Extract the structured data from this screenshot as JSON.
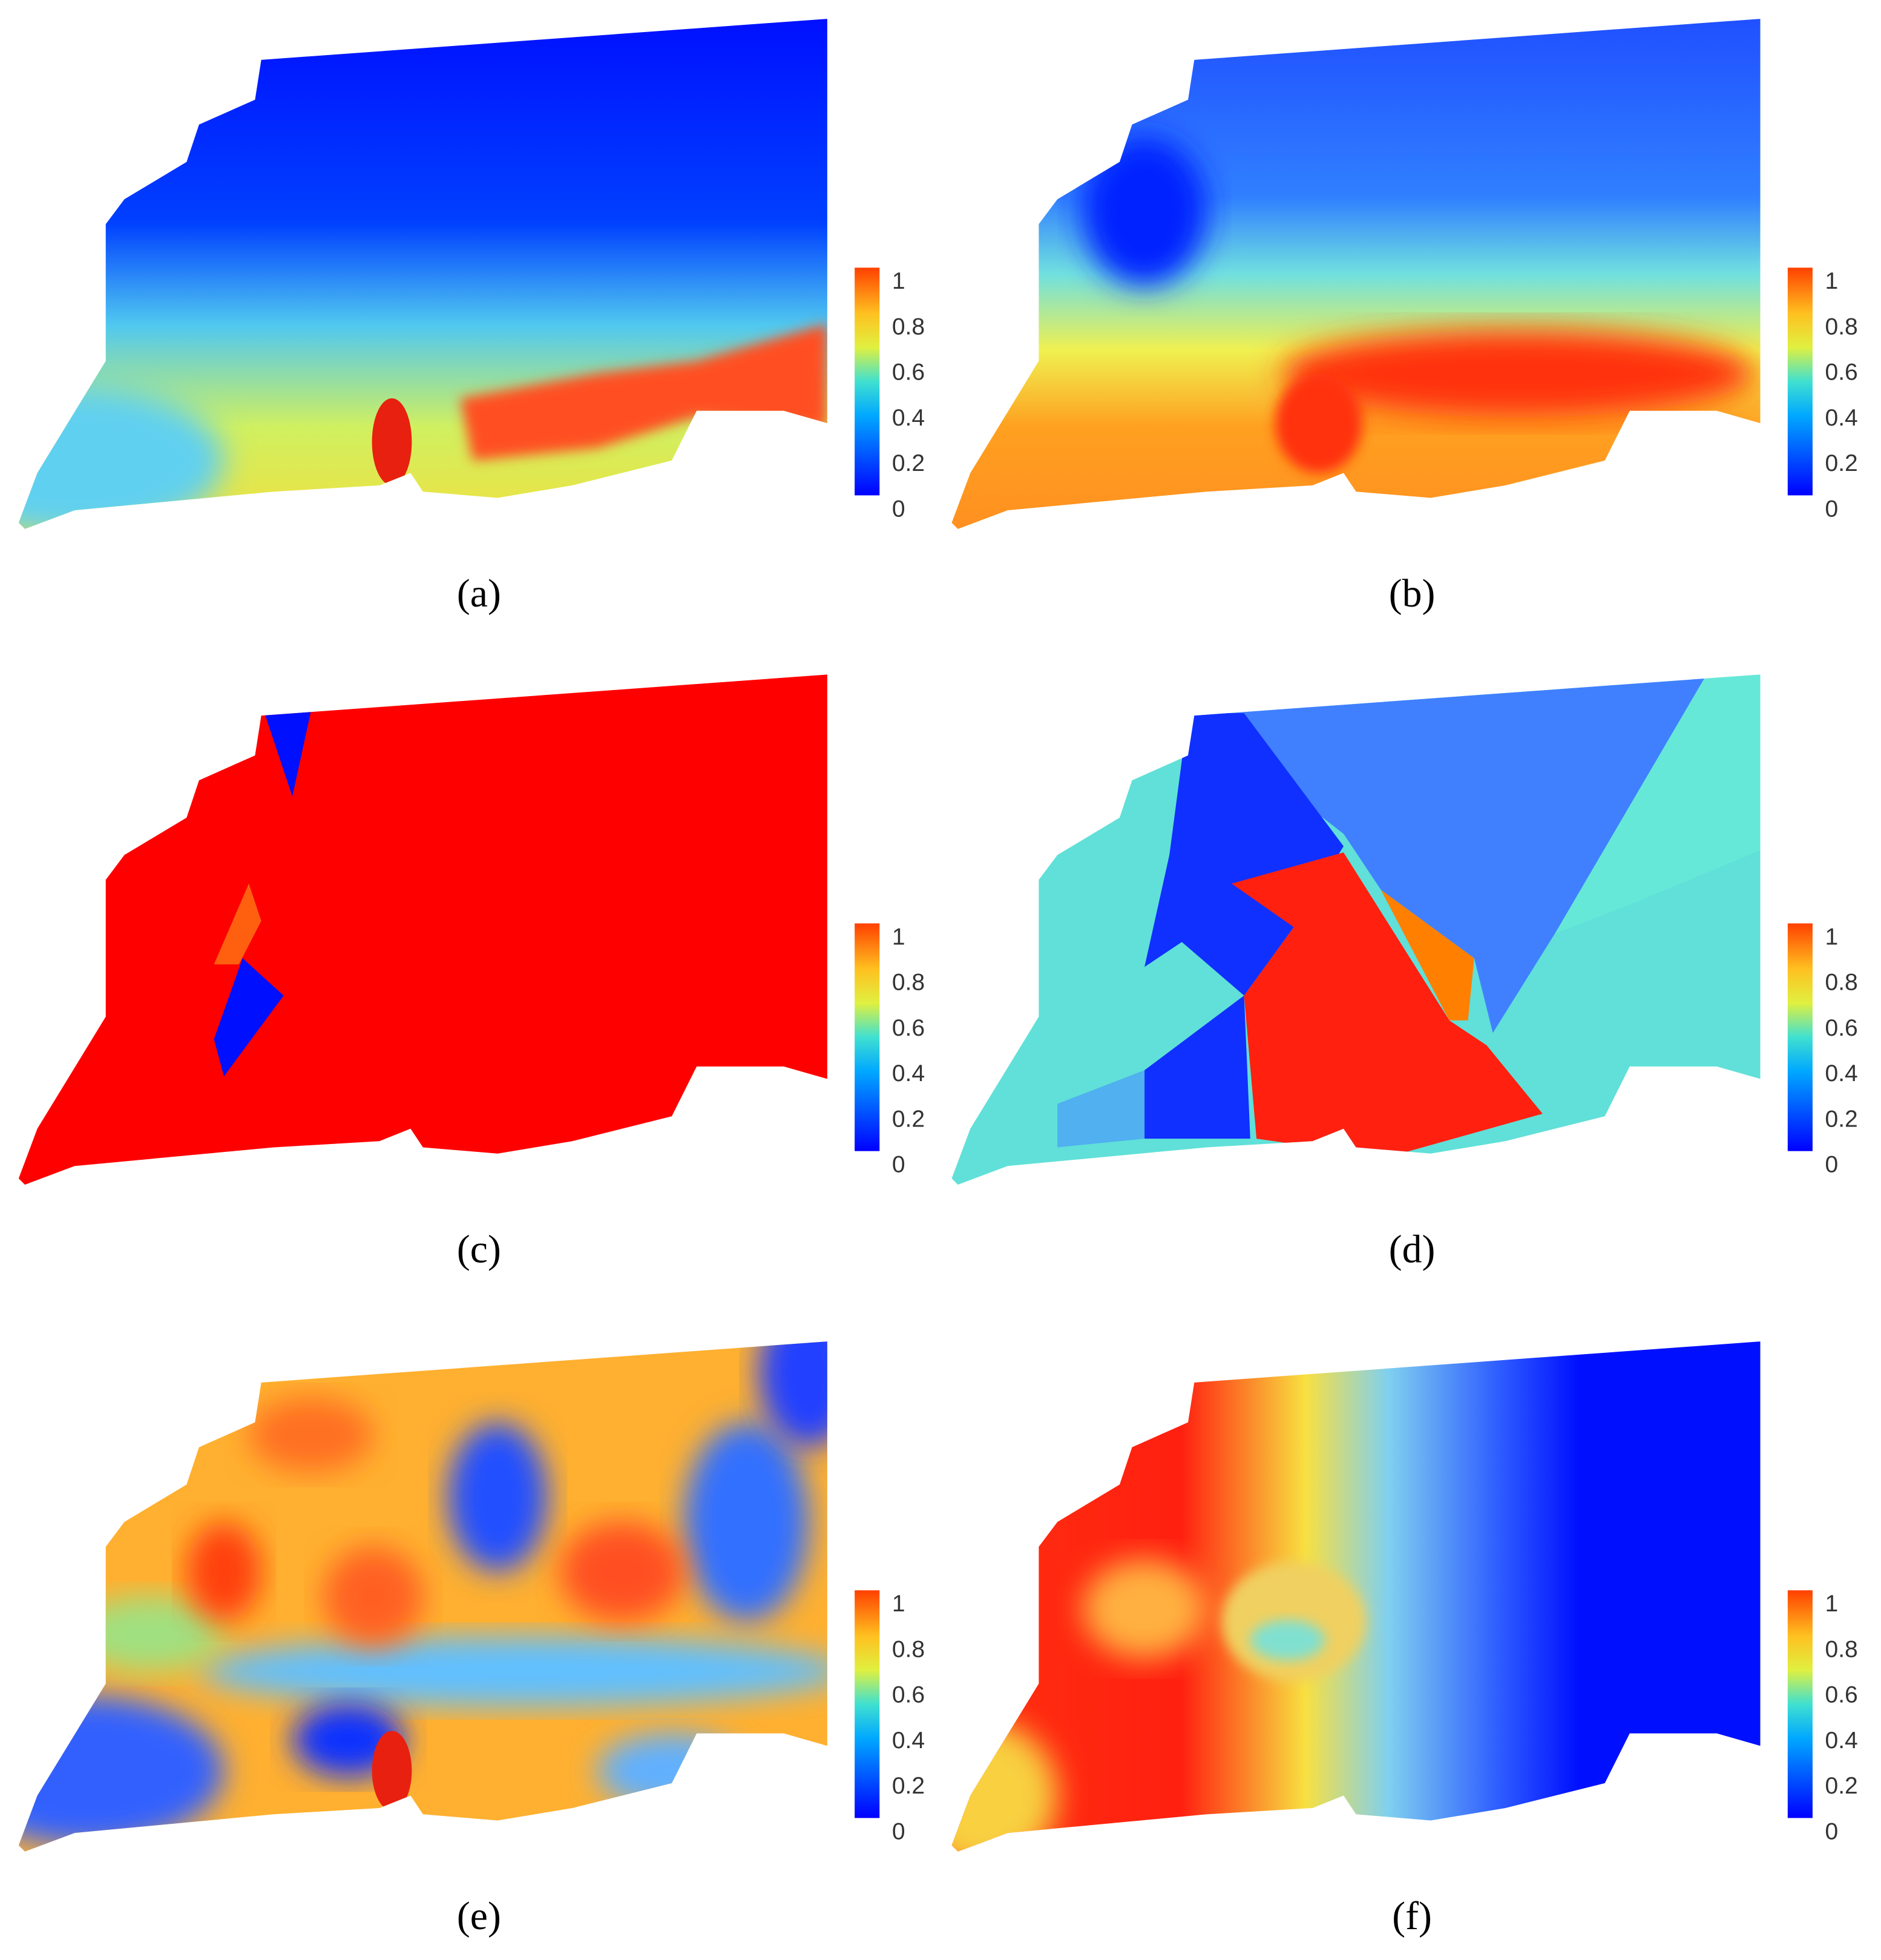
{
  "panels": [
    {
      "label": "(a)",
      "colorbar": {
        "range": [
          0,
          1
        ],
        "ticks": [
          0,
          0.2,
          0.4,
          0.6,
          0.8,
          1
        ]
      }
    },
    {
      "label": "(b)",
      "colorbar": {
        "range": [
          0,
          1
        ],
        "ticks": [
          0,
          0.2,
          0.4,
          0.6,
          0.8,
          1
        ]
      }
    },
    {
      "label": "(c)",
      "colorbar": {
        "range": [
          0,
          1
        ],
        "ticks": [
          0,
          0.2,
          0.4,
          0.6,
          0.8,
          1
        ]
      }
    },
    {
      "label": "(d)",
      "colorbar": {
        "range": [
          0,
          1
        ],
        "ticks": [
          0,
          0.2,
          0.4,
          0.6,
          0.8,
          1
        ]
      }
    },
    {
      "label": "(e)",
      "colorbar": {
        "range": [
          0,
          1
        ],
        "ticks": [
          0,
          0.2,
          0.4,
          0.6,
          0.8,
          1
        ]
      }
    },
    {
      "label": "(f)",
      "colorbar": {
        "range": [
          0,
          1
        ],
        "ticks": [
          0,
          0.2,
          0.4,
          0.6,
          0.8,
          1
        ]
      }
    }
  ]
}
